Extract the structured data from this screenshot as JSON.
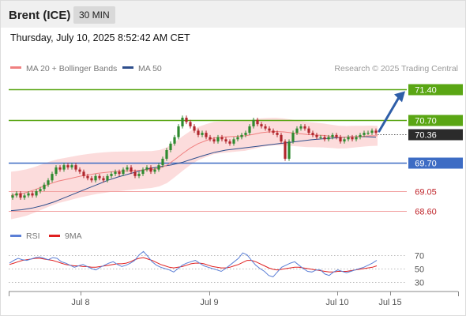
{
  "header": {
    "title": "Brent (ICE)",
    "interval": "30 MIN"
  },
  "datetime": "Thursday, July 10, 2025 8:52:42 AM CET",
  "legend": {
    "main": [
      {
        "label": "MA 20 + Bollinger Bands",
        "color": "#f08080"
      },
      {
        "label": "MA 50",
        "color": "#2e4e8c"
      }
    ],
    "rsi": [
      {
        "label": "RSI",
        "color": "#5b7fd6"
      },
      {
        "label": "9MA",
        "color": "#e02020"
      }
    ]
  },
  "copyright": "Research © 2025 Trading Central",
  "colors": {
    "up": "#2f8a2f",
    "down": "#b0262c",
    "resistance": "#5aa614",
    "pivot": "#3d6cc4",
    "support": "#f2a0a0",
    "arrow": "#2e5ea8",
    "band": "#fbd6d6"
  },
  "chart_data": [
    {
      "type": "candlestick",
      "ylim": [
        68.3,
        71.7
      ],
      "x_ticks": [
        "Jul 8",
        "Jul 9",
        "Jul 10",
        "Jul 15"
      ],
      "current_price": "70.36",
      "levels": [
        {
          "value": 71.4,
          "label": "71.40",
          "kind": "resistance",
          "tag": "green"
        },
        {
          "value": 70.7,
          "label": "70.70",
          "kind": "resistance",
          "tag": "green"
        },
        {
          "value": 70.36,
          "label": "70.36",
          "kind": "last",
          "tag": "dark"
        },
        {
          "value": 69.7,
          "label": "69.70",
          "kind": "pivot",
          "tag": "blue"
        },
        {
          "value": 69.05,
          "label": "69.05",
          "kind": "support",
          "tag": "text"
        },
        {
          "value": 68.6,
          "label": "68.60",
          "kind": "support",
          "tag": "text"
        }
      ],
      "ohlc_close": [
        68.95,
        69.0,
        68.9,
        68.95,
        69.0,
        68.95,
        69.05,
        69.1,
        69.2,
        69.3,
        69.45,
        69.6,
        69.55,
        69.65,
        69.6,
        69.65,
        69.55,
        69.5,
        69.4,
        69.35,
        69.3,
        69.4,
        69.35,
        69.3,
        69.4,
        69.45,
        69.5,
        69.45,
        69.55,
        69.6,
        69.5,
        69.4,
        69.45,
        69.55,
        69.6,
        69.5,
        69.55,
        69.65,
        69.8,
        70.0,
        70.15,
        70.3,
        70.55,
        70.75,
        70.65,
        70.55,
        70.45,
        70.35,
        70.4,
        70.3,
        70.25,
        70.2,
        70.3,
        70.25,
        70.2,
        70.15,
        70.25,
        70.3,
        70.35,
        70.4,
        70.55,
        70.7,
        70.6,
        70.55,
        70.5,
        70.45,
        70.4,
        70.35,
        70.2,
        69.8,
        70.2,
        70.4,
        70.5,
        70.55,
        70.5,
        70.4,
        70.35,
        70.3,
        70.3,
        70.25,
        70.3,
        70.35,
        70.3,
        70.2,
        70.25,
        70.3,
        70.25,
        70.3,
        70.35,
        70.4,
        70.4,
        70.45,
        70.4
      ],
      "ma20": [
        68.95,
        68.98,
        69.02,
        69.08,
        69.15,
        69.22,
        69.28,
        69.32,
        69.36,
        69.4,
        69.43,
        69.46,
        69.48,
        69.5,
        69.51,
        69.52,
        69.53,
        69.54,
        69.55,
        69.58,
        69.65,
        69.78,
        69.92,
        70.05,
        70.15,
        70.22,
        70.28,
        70.3,
        70.31,
        70.32,
        70.33,
        70.36,
        70.4,
        70.42,
        70.43,
        70.42,
        70.4,
        70.38,
        70.36,
        70.35,
        70.34,
        70.32,
        70.3,
        70.3,
        70.31,
        70.32,
        70.33,
        70.33
      ],
      "ma50": [
        68.6,
        68.62,
        68.66,
        68.72,
        68.8,
        68.9,
        69.0,
        69.1,
        69.2,
        69.3,
        69.38,
        69.45,
        69.52,
        69.58,
        69.62,
        69.66,
        69.72,
        69.8,
        69.88,
        69.95,
        70.0,
        70.03,
        70.06,
        70.09,
        70.12,
        70.15,
        70.18,
        70.21,
        70.24,
        70.26,
        70.28,
        70.3,
        70.31,
        70.31,
        70.3
      ]
    },
    {
      "type": "line",
      "title": "RSI",
      "ylim": [
        20,
        80
      ],
      "y_ticks": [
        70,
        50,
        30
      ],
      "series": [
        {
          "name": "RSI",
          "values": [
            58,
            62,
            65,
            63,
            62,
            64,
            66,
            67,
            65,
            63,
            66,
            65,
            60,
            58,
            55,
            52,
            54,
            56,
            53,
            50,
            48,
            52,
            55,
            58,
            60,
            56,
            53,
            55,
            58,
            62,
            70,
            75,
            68,
            60,
            55,
            52,
            50,
            48,
            45,
            50,
            55,
            58,
            60,
            62,
            58,
            54,
            52,
            50,
            48,
            46,
            50,
            55,
            60,
            65,
            73,
            70,
            62,
            55,
            50,
            46,
            40,
            38,
            45,
            52,
            55,
            58,
            60,
            55,
            50,
            46,
            45,
            48,
            48,
            42,
            40,
            45,
            48,
            46,
            44,
            46,
            48,
            50,
            52,
            55,
            58,
            62
          ]
        },
        {
          "name": "9MA",
          "values": [
            56,
            58,
            60,
            62,
            63,
            64,
            65,
            65,
            64,
            63,
            62,
            60,
            58,
            56,
            55,
            54,
            54,
            53,
            53,
            52,
            52,
            53,
            54,
            55,
            56,
            57,
            57,
            58,
            60,
            63,
            65,
            66,
            64,
            62,
            59,
            56,
            54,
            52,
            51,
            52,
            53,
            55,
            57,
            58,
            58,
            57,
            55,
            53,
            52,
            51,
            51,
            52,
            54,
            56,
            59,
            62,
            62,
            60,
            57,
            54,
            51,
            49,
            48,
            49,
            50,
            51,
            52,
            52,
            51,
            50,
            49,
            48,
            47,
            46,
            45,
            45,
            46,
            46,
            46,
            47,
            48,
            49,
            50,
            51,
            52,
            54
          ]
        }
      ]
    }
  ]
}
